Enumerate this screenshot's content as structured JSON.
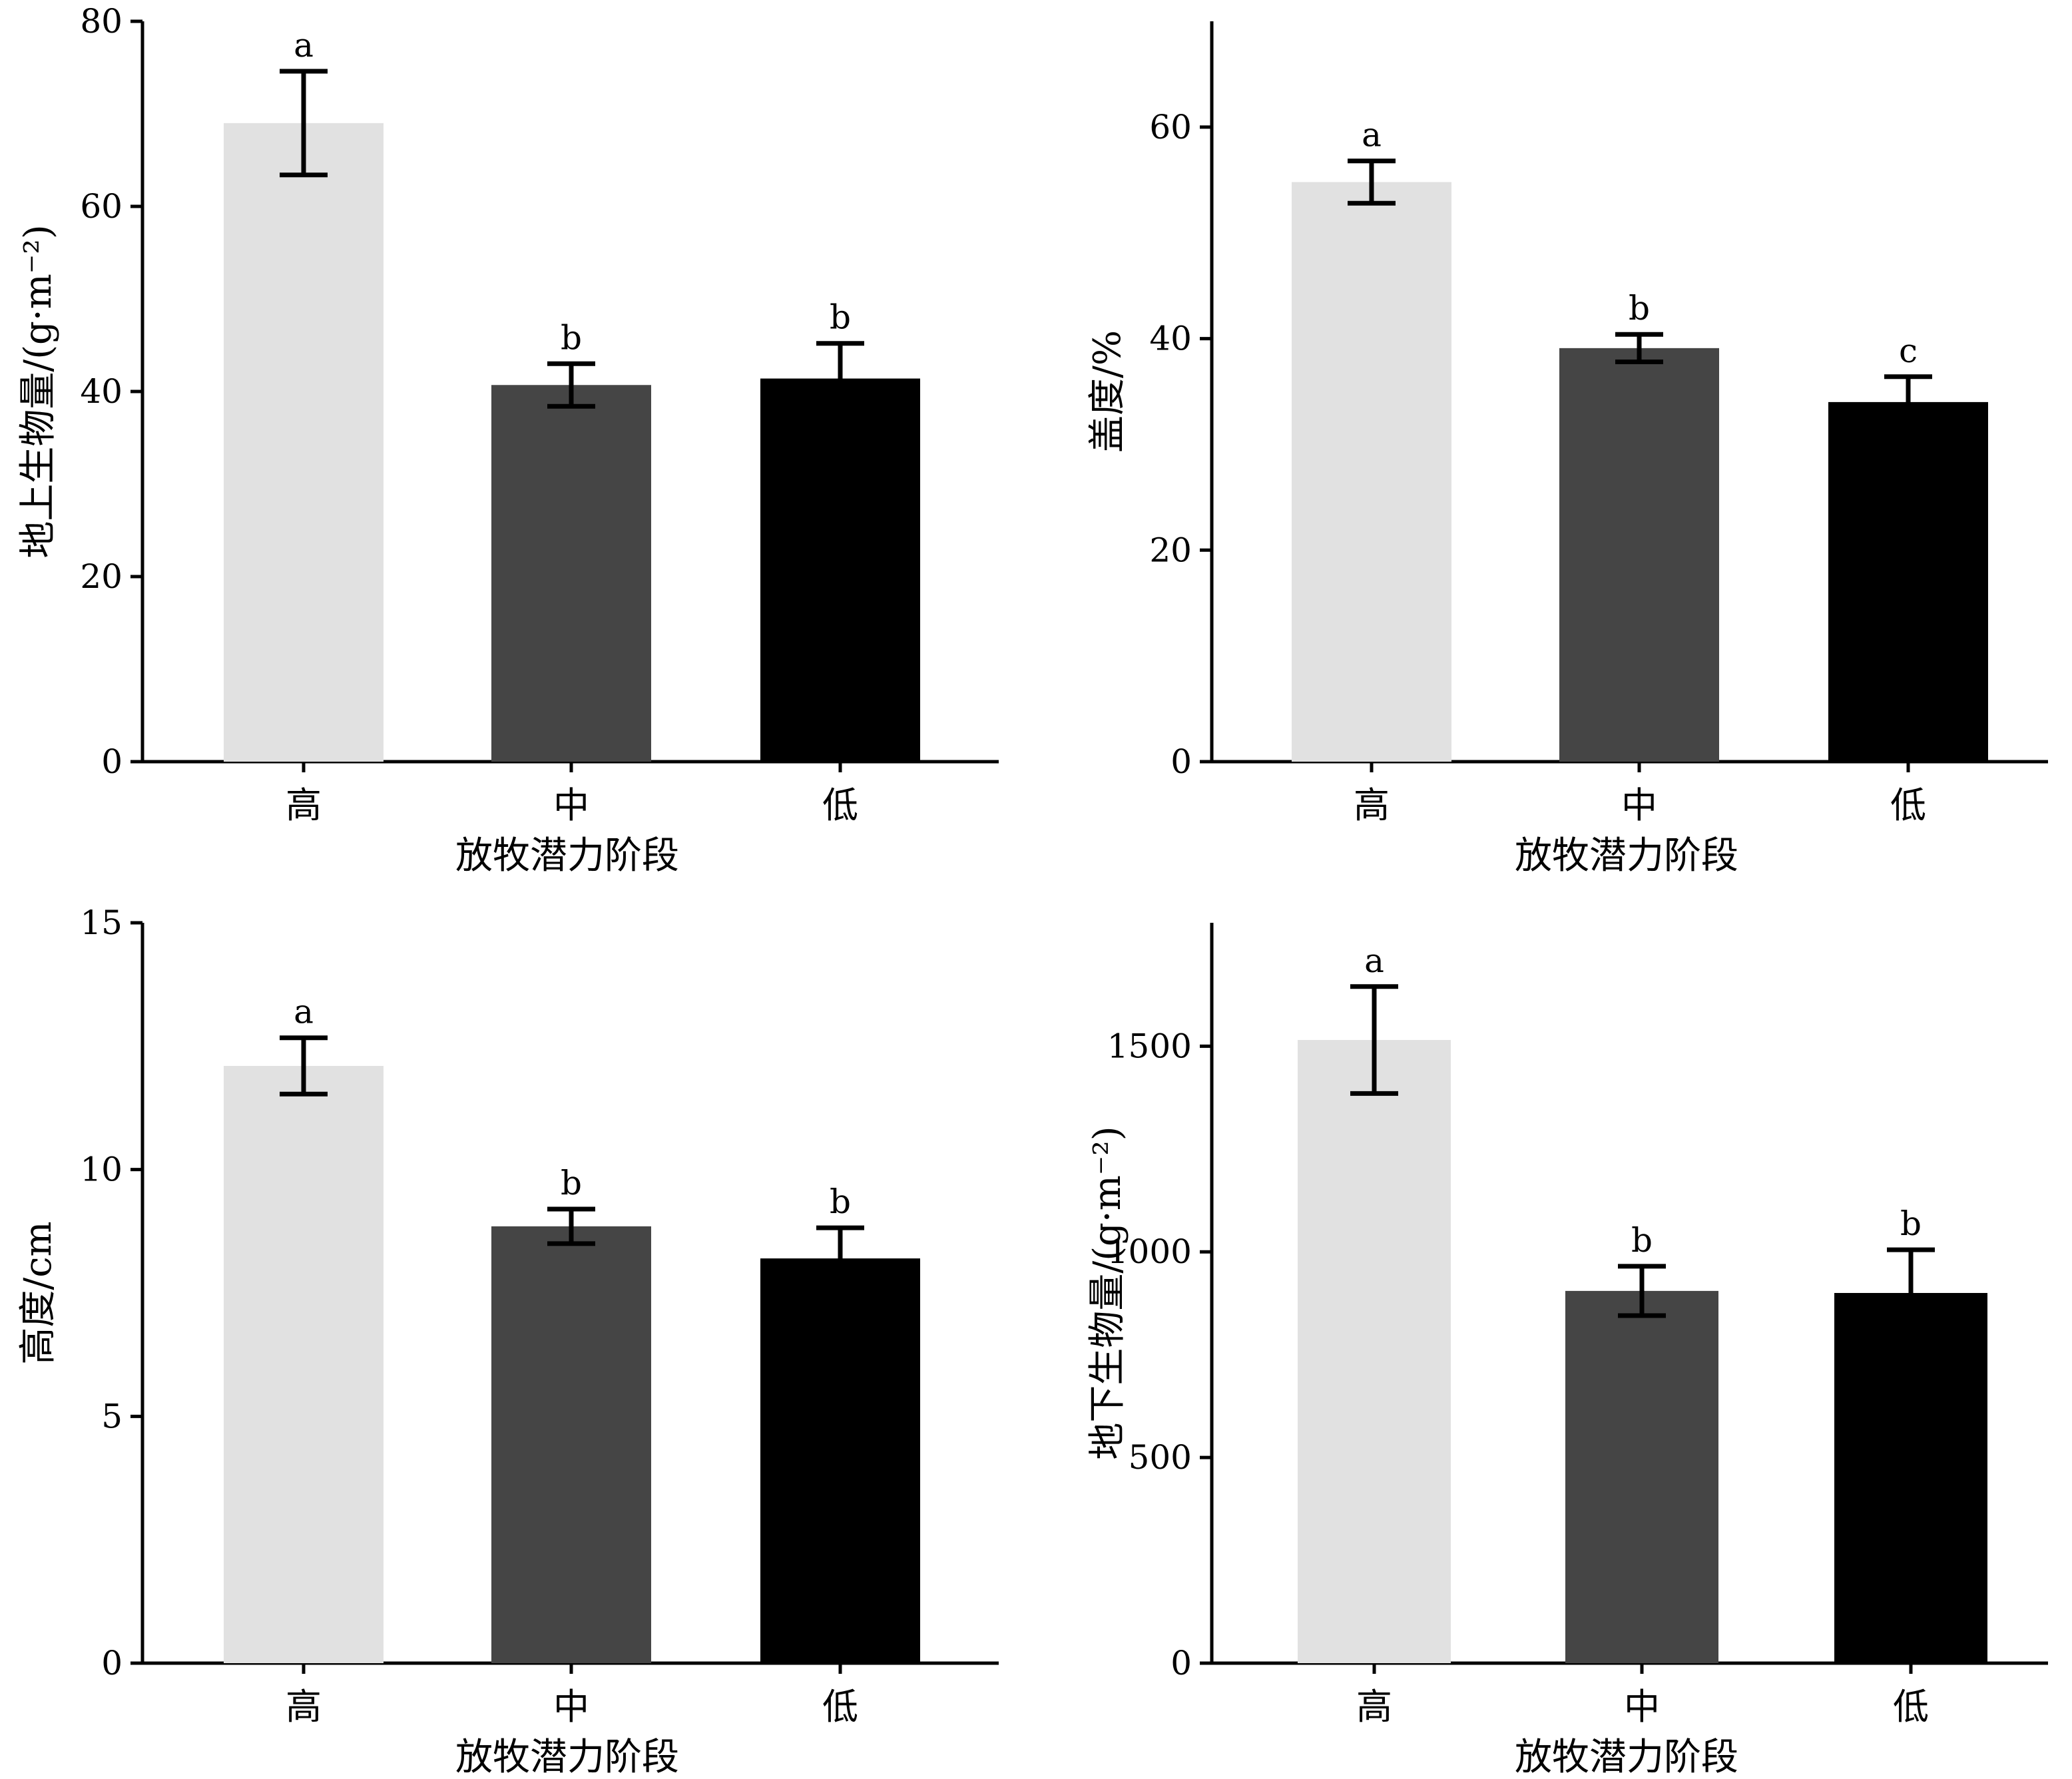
{
  "chart_data": [
    {
      "type": "bar",
      "categories": [
        "高",
        "中",
        "低"
      ],
      "values": [
        69,
        40.7,
        41.4
      ],
      "errors": [
        5.6,
        2.3,
        3.8
      ],
      "significance": [
        "a",
        "b",
        "b"
      ],
      "xlabel": "放牧潜力阶段",
      "ylabel": "地上生物量/(g·m⁻²)",
      "ylim": [
        0,
        80
      ],
      "yticks": [
        0,
        20,
        40,
        60,
        80
      ],
      "colors": [
        "#e1e1e1",
        "#454545",
        "#000000"
      ]
    },
    {
      "type": "bar",
      "categories": [
        "高",
        "中",
        "低"
      ],
      "values": [
        54.8,
        39.1,
        34
      ],
      "errors": [
        2,
        1.3,
        2.4
      ],
      "significance": [
        "a",
        "b",
        "c"
      ],
      "xlabel": "放牧潜力阶段",
      "ylabel": "盖度/%",
      "ylim": [
        0,
        70
      ],
      "yticks": [
        0,
        20,
        40,
        60
      ],
      "colors": [
        "#e1e1e1",
        "#454545",
        "#000000"
      ]
    },
    {
      "type": "bar",
      "categories": [
        "高",
        "中",
        "低"
      ],
      "values": [
        12.1,
        8.85,
        8.2
      ],
      "errors": [
        0.57,
        0.35,
        0.62
      ],
      "significance": [
        "a",
        "b",
        "b"
      ],
      "xlabel": "放牧潜力阶段",
      "ylabel": "高度/cm",
      "ylim": [
        0,
        15
      ],
      "yticks": [
        0,
        5,
        10,
        15
      ],
      "colors": [
        "#e1e1e1",
        "#454545",
        "#000000"
      ]
    },
    {
      "type": "bar",
      "categories": [
        "高",
        "中",
        "低"
      ],
      "values": [
        1515,
        905,
        900
      ],
      "errors": [
        130,
        60,
        105
      ],
      "significance": [
        "a",
        "b",
        "b"
      ],
      "xlabel": "放牧潜力阶段",
      "ylabel": "地下生物量/(g·m⁻²)",
      "ylim": [
        0,
        1800
      ],
      "yticks": [
        0,
        500,
        1000,
        1500
      ],
      "colors": [
        "#e1e1e1",
        "#454545",
        "#000000"
      ]
    }
  ]
}
